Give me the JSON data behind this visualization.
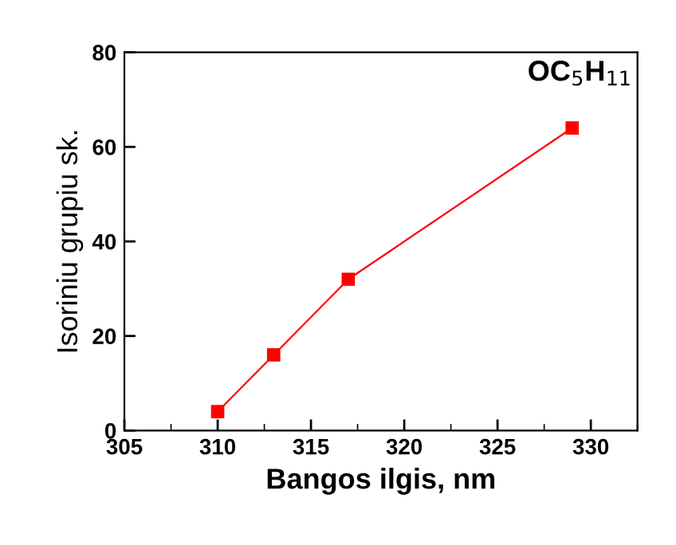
{
  "chart_data": {
    "type": "line",
    "xlabel": "Bangos ilgis, nm",
    "ylabel": "Isoriniu grupiu sk.",
    "annotations": [
      "OC$_{5}$H$_{11}$"
    ],
    "x": [
      310,
      313,
      317,
      329
    ],
    "series": [
      {
        "color": "#ff0000",
        "values": [
          4,
          16,
          32,
          64
        ]
      }
    ],
    "marker": "square",
    "line_style": "solid",
    "xlim": [
      305,
      332.5
    ],
    "xticks": [
      305,
      310,
      315,
      320,
      325,
      330
    ],
    "ylim": [
      0,
      80
    ],
    "yticks": [
      0,
      20,
      40,
      60,
      80
    ],
    "grid": false,
    "legend": false
  }
}
